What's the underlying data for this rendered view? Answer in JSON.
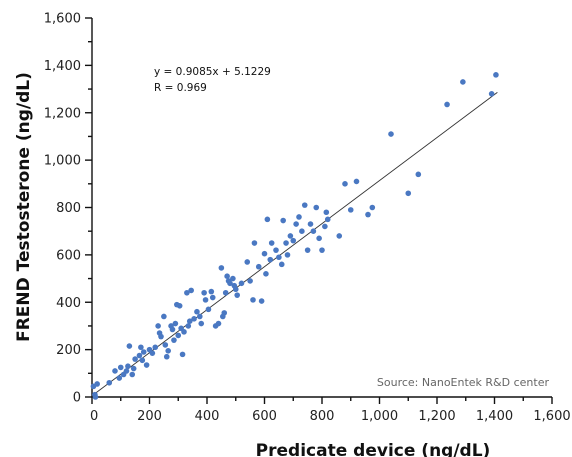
{
  "chart_data": {
    "type": "scatter",
    "title": "",
    "xlabel": "Predicate device (ng/dL)",
    "ylabel": "FREND Testosterone (ng/dL)",
    "xlim": [
      0,
      1600
    ],
    "ylim": [
      0,
      1600
    ],
    "xticks": [
      "0",
      "200",
      "400",
      "600",
      "800",
      "1,000",
      "1,200",
      "1,400",
      "1,600"
    ],
    "yticks": [
      "0",
      "200",
      "400",
      "600",
      "800",
      "1,000",
      "1,200",
      "1,400",
      "1,600"
    ],
    "grid": false,
    "marker_color": "#4A78C2",
    "equation": "y = 0.9085x + 5.1229",
    "r_value": "R = 0.969",
    "fit": {
      "slope": 0.9085,
      "intercept": 5.1229,
      "x_range": [
        0,
        1410
      ]
    },
    "source_note": "Source: NanoEntek R&D center",
    "series": [
      {
        "points": [
          [
            5,
            45
          ],
          [
            10,
            10
          ],
          [
            12,
            0
          ],
          [
            18,
            55
          ],
          [
            60,
            60
          ],
          [
            80,
            110
          ],
          [
            95,
            80
          ],
          [
            100,
            125
          ],
          [
            110,
            95
          ],
          [
            120,
            110
          ],
          [
            125,
            130
          ],
          [
            130,
            215
          ],
          [
            140,
            95
          ],
          [
            145,
            120
          ],
          [
            150,
            160
          ],
          [
            165,
            175
          ],
          [
            170,
            210
          ],
          [
            175,
            155
          ],
          [
            180,
            190
          ],
          [
            190,
            135
          ],
          [
            200,
            200
          ],
          [
            210,
            185
          ],
          [
            220,
            210
          ],
          [
            230,
            300
          ],
          [
            235,
            270
          ],
          [
            240,
            255
          ],
          [
            250,
            340
          ],
          [
            255,
            220
          ],
          [
            260,
            170
          ],
          [
            265,
            195
          ],
          [
            275,
            300
          ],
          [
            280,
            285
          ],
          [
            285,
            240
          ],
          [
            290,
            310
          ],
          [
            295,
            390
          ],
          [
            300,
            260
          ],
          [
            305,
            385
          ],
          [
            310,
            290
          ],
          [
            315,
            180
          ],
          [
            320,
            275
          ],
          [
            330,
            440
          ],
          [
            335,
            300
          ],
          [
            340,
            320
          ],
          [
            345,
            450
          ],
          [
            355,
            330
          ],
          [
            365,
            360
          ],
          [
            375,
            340
          ],
          [
            380,
            310
          ],
          [
            390,
            440
          ],
          [
            395,
            410
          ],
          [
            405,
            370
          ],
          [
            415,
            445
          ],
          [
            420,
            420
          ],
          [
            430,
            300
          ],
          [
            440,
            310
          ],
          [
            450,
            545
          ],
          [
            455,
            340
          ],
          [
            460,
            355
          ],
          [
            465,
            440
          ],
          [
            470,
            510
          ],
          [
            475,
            490
          ],
          [
            480,
            480
          ],
          [
            490,
            500
          ],
          [
            495,
            470
          ],
          [
            500,
            455
          ],
          [
            505,
            430
          ],
          [
            520,
            480
          ],
          [
            540,
            570
          ],
          [
            550,
            490
          ],
          [
            560,
            410
          ],
          [
            565,
            650
          ],
          [
            580,
            550
          ],
          [
            590,
            405
          ],
          [
            600,
            605
          ],
          [
            605,
            520
          ],
          [
            610,
            750
          ],
          [
            620,
            580
          ],
          [
            625,
            650
          ],
          [
            640,
            620
          ],
          [
            650,
            590
          ],
          [
            660,
            560
          ],
          [
            665,
            745
          ],
          [
            675,
            650
          ],
          [
            680,
            600
          ],
          [
            690,
            680
          ],
          [
            700,
            660
          ],
          [
            710,
            730
          ],
          [
            720,
            760
          ],
          [
            730,
            700
          ],
          [
            740,
            810
          ],
          [
            750,
            620
          ],
          [
            760,
            730
          ],
          [
            770,
            700
          ],
          [
            780,
            800
          ],
          [
            790,
            670
          ],
          [
            800,
            620
          ],
          [
            810,
            720
          ],
          [
            815,
            780
          ],
          [
            820,
            750
          ],
          [
            860,
            680
          ],
          [
            880,
            900
          ],
          [
            900,
            790
          ],
          [
            920,
            910
          ],
          [
            960,
            770
          ],
          [
            975,
            800
          ],
          [
            1040,
            1110
          ],
          [
            1100,
            860
          ],
          [
            1135,
            940
          ],
          [
            1235,
            1235
          ],
          [
            1290,
            1330
          ],
          [
            1390,
            1280
          ],
          [
            1405,
            1360
          ]
        ]
      }
    ]
  }
}
